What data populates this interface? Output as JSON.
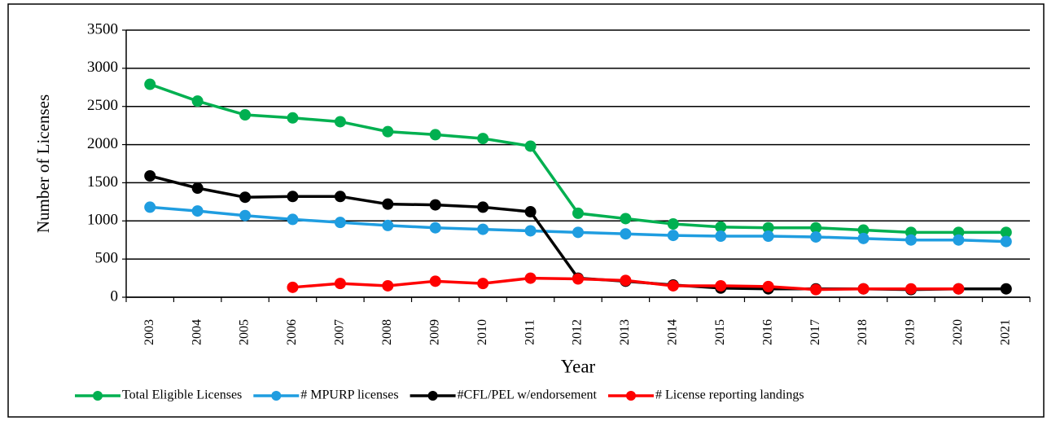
{
  "chart_data": {
    "type": "line",
    "y_label": "Number of Licenses",
    "x_label": "Year",
    "categories": [
      "2003",
      "2004",
      "2005",
      "2006",
      "2007",
      "2008",
      "2009",
      "2010",
      "2011",
      "2012",
      "2013",
      "2014",
      "2015",
      "2016",
      "2017",
      "2018",
      "2019",
      "2020",
      "2021"
    ],
    "series": [
      {
        "name": "Total Eligible Licenses",
        "color": "#00b050",
        "values": [
          2790,
          2570,
          2390,
          2350,
          2300,
          2170,
          2130,
          2080,
          1980,
          1100,
          1030,
          960,
          920,
          910,
          910,
          880,
          850,
          850,
          850
        ]
      },
      {
        "name": "# MPURP licenses",
        "color": "#1f9de0",
        "values": [
          1180,
          1130,
          1070,
          1020,
          980,
          940,
          910,
          890,
          870,
          850,
          830,
          810,
          800,
          800,
          790,
          770,
          750,
          750,
          730
        ]
      },
      {
        "name": "#CFL/PEL w/endorsement",
        "color": "#000000",
        "values": [
          1590,
          1430,
          1310,
          1320,
          1320,
          1220,
          1210,
          1180,
          1120,
          250,
          210,
          160,
          120,
          110,
          110,
          110,
          100,
          110,
          110
        ]
      },
      {
        "name": "# License reporting landings",
        "color": "#ff0000",
        "values": [
          null,
          null,
          null,
          130,
          180,
          150,
          210,
          180,
          250,
          240,
          220,
          150,
          150,
          140,
          100,
          110,
          110,
          110,
          null
        ]
      }
    ],
    "ylim": [
      0,
      3500
    ],
    "yticks": [
      0,
      500,
      1000,
      1500,
      2000,
      2500,
      3000,
      3500
    ],
    "grid": true
  }
}
